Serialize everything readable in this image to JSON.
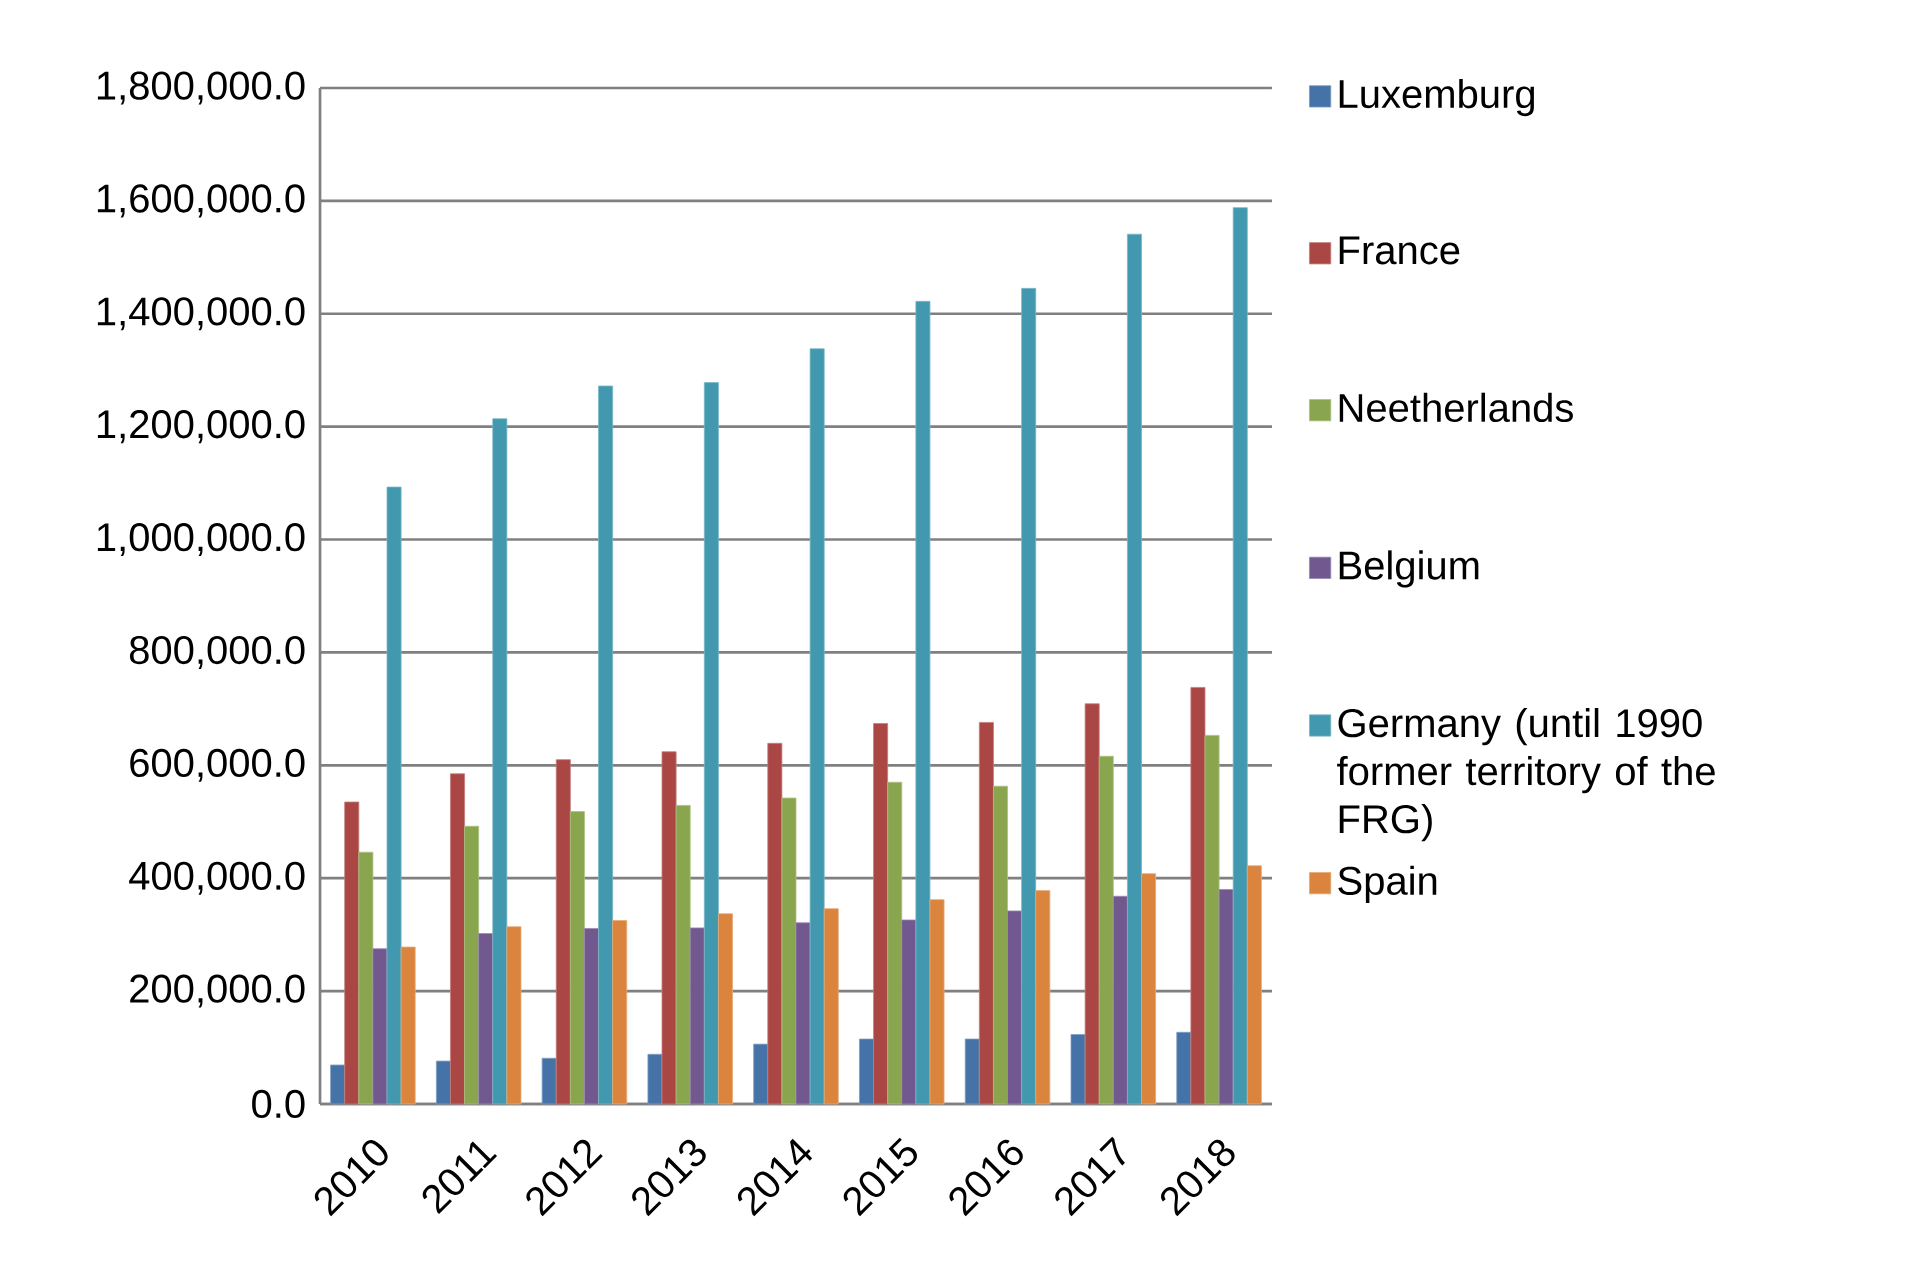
{
  "chart_data": {
    "type": "bar",
    "categories": [
      "2010",
      "2011",
      "2012",
      "2013",
      "2014",
      "2015",
      "2016",
      "2017",
      "2018"
    ],
    "series": [
      {
        "name": "Luxemburg",
        "color": "#4573a7",
        "values": [
          69000,
          76000,
          81000,
          88000,
          106000,
          115000,
          115000,
          123000,
          127000
        ]
      },
      {
        "name": "France",
        "color": "#aa4643",
        "values": [
          535000,
          585000,
          610000,
          624000,
          639000,
          674000,
          676000,
          709000,
          738000
        ]
      },
      {
        "name": "Neetherlands",
        "color": "#89a54e",
        "values": [
          446000,
          492000,
          518000,
          529000,
          542000,
          570000,
          563000,
          616000,
          653000
        ]
      },
      {
        "name": "Belgium",
        "color": "#71588f",
        "values": [
          275000,
          302000,
          311000,
          312000,
          321000,
          326000,
          342000,
          368000,
          380000
        ]
      },
      {
        "name": "Germany (until 1990 former territory of the FRG)",
        "color": "#4198af",
        "values": [
          1093000,
          1214000,
          1272000,
          1278000,
          1338000,
          1422000,
          1445000,
          1541000,
          1588000
        ]
      },
      {
        "name": "Spain",
        "color": "#db843d",
        "values": [
          278000,
          314000,
          325000,
          337000,
          346000,
          362000,
          378000,
          408000,
          422000
        ]
      }
    ],
    "ylim": [
      0,
      1800000
    ],
    "yticks": [
      {
        "value": 0,
        "label": "0.0"
      },
      {
        "value": 200000,
        "label": "200,000.0"
      },
      {
        "value": 400000,
        "label": "400,000.0"
      },
      {
        "value": 600000,
        "label": "600,000.0"
      },
      {
        "value": 800000,
        "label": "800,000.0"
      },
      {
        "value": 1000000,
        "label": "1,000,000.0"
      },
      {
        "value": 1200000,
        "label": "1,200,000.0"
      },
      {
        "value": 1400000,
        "label": "1,400,000.0"
      },
      {
        "value": 1600000,
        "label": "1,600,000.0"
      },
      {
        "value": 1800000,
        "label": "1,800,000.0"
      }
    ],
    "grid": "y",
    "legend": "right"
  }
}
